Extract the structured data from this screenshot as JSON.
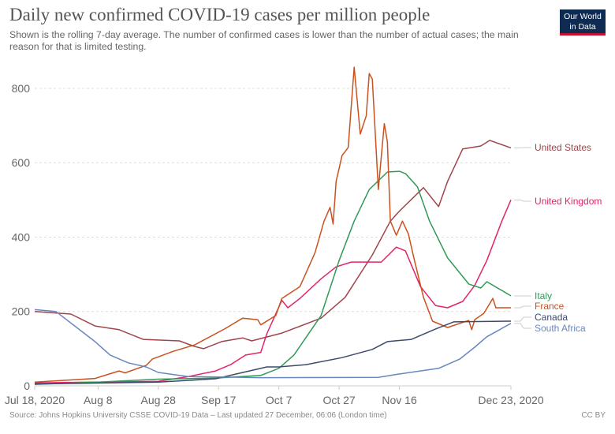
{
  "header": {
    "title": "Daily new confirmed COVID-19 cases per million people",
    "subtitle": "Shown is the rolling 7-day average. The number of confirmed cases is lower than the number of actual cases; the main reason for that is limited testing.",
    "logo_text": "Our World in Data"
  },
  "footer": {
    "source": "Source: Johns Hopkins University CSSE COVID-19 Data – Last updated 27 December, 06:06 (London time)",
    "license": "CC BY"
  },
  "chart_data": {
    "type": "line",
    "title": "Daily new confirmed COVID-19 cases per million people",
    "xlabel": "",
    "ylabel": "",
    "xlim": [
      "2020-07-18",
      "2020-12-23"
    ],
    "ylim": [
      0,
      870
    ],
    "grid": "horizontal dotted",
    "legend": "right (labels at line ends)",
    "x_ticks": [
      {
        "date": "2020-07-18",
        "label": "Jul 18, 2020"
      },
      {
        "date": "2020-08-08",
        "label": "Aug 8"
      },
      {
        "date": "2020-08-28",
        "label": "Aug 28"
      },
      {
        "date": "2020-09-17",
        "label": "Sep 17"
      },
      {
        "date": "2020-10-07",
        "label": "Oct 7"
      },
      {
        "date": "2020-10-27",
        "label": "Oct 27"
      },
      {
        "date": "2020-11-16",
        "label": "Nov 16"
      },
      {
        "date": "2020-12-23",
        "label": "Dec 23, 2020"
      }
    ],
    "y_ticks": [
      0,
      200,
      400,
      600,
      800
    ],
    "series": [
      {
        "name": "United States",
        "color": "#a0444b",
        "points": [
          [
            "2020-07-18",
            200
          ],
          [
            "2020-07-30",
            193
          ],
          [
            "2020-08-07",
            161
          ],
          [
            "2020-08-15",
            151
          ],
          [
            "2020-08-23",
            125
          ],
          [
            "2020-09-04",
            121
          ],
          [
            "2020-09-09",
            106
          ],
          [
            "2020-09-12",
            100
          ],
          [
            "2020-09-18",
            119
          ],
          [
            "2020-09-25",
            129
          ],
          [
            "2020-09-28",
            121
          ],
          [
            "2020-10-08",
            142
          ],
          [
            "2020-10-21",
            182
          ],
          [
            "2020-10-29",
            238
          ],
          [
            "2020-11-07",
            352
          ],
          [
            "2020-11-13",
            443
          ],
          [
            "2020-11-16",
            470
          ],
          [
            "2020-11-24",
            533
          ],
          [
            "2020-11-29",
            482
          ],
          [
            "2020-12-02",
            550
          ],
          [
            "2020-12-07",
            637
          ],
          [
            "2020-12-13",
            645
          ],
          [
            "2020-12-16",
            660
          ],
          [
            "2020-12-23",
            640
          ]
        ]
      },
      {
        "name": "United Kingdom",
        "color": "#e0246c",
        "points": [
          [
            "2020-07-18",
            8
          ],
          [
            "2020-08-28",
            12
          ],
          [
            "2020-09-07",
            25
          ],
          [
            "2020-09-16",
            40
          ],
          [
            "2020-09-21",
            57
          ],
          [
            "2020-09-26",
            83
          ],
          [
            "2020-10-01",
            90
          ],
          [
            "2020-10-03",
            140
          ],
          [
            "2020-10-08",
            230
          ],
          [
            "2020-10-10",
            210
          ],
          [
            "2020-10-14",
            235
          ],
          [
            "2020-10-21",
            288
          ],
          [
            "2020-10-26",
            320
          ],
          [
            "2020-10-31",
            333
          ],
          [
            "2020-11-10",
            333
          ],
          [
            "2020-11-15",
            373
          ],
          [
            "2020-11-18",
            363
          ],
          [
            "2020-11-23",
            267
          ],
          [
            "2020-11-28",
            216
          ],
          [
            "2020-12-02",
            210
          ],
          [
            "2020-12-07",
            227
          ],
          [
            "2020-12-11",
            270
          ],
          [
            "2020-12-15",
            337
          ],
          [
            "2020-12-20",
            443
          ],
          [
            "2020-12-23",
            500
          ]
        ]
      },
      {
        "name": "Italy",
        "color": "#2f9a57",
        "points": [
          [
            "2020-07-18",
            4
          ],
          [
            "2020-08-08",
            10
          ],
          [
            "2020-08-28",
            18
          ],
          [
            "2020-09-16",
            21
          ],
          [
            "2020-10-01",
            28
          ],
          [
            "2020-10-07",
            47
          ],
          [
            "2020-10-12",
            83
          ],
          [
            "2020-10-21",
            189
          ],
          [
            "2020-10-27",
            337
          ],
          [
            "2020-11-01",
            443
          ],
          [
            "2020-11-06",
            528
          ],
          [
            "2020-11-12",
            575
          ],
          [
            "2020-11-16",
            577
          ],
          [
            "2020-11-18",
            571
          ],
          [
            "2020-11-22",
            535
          ],
          [
            "2020-11-26",
            443
          ],
          [
            "2020-12-02",
            344
          ],
          [
            "2020-12-09",
            274
          ],
          [
            "2020-12-13",
            263
          ],
          [
            "2020-12-15",
            280
          ],
          [
            "2020-12-23",
            242
          ]
        ]
      },
      {
        "name": "France",
        "color": "#c9521f",
        "points": [
          [
            "2020-07-18",
            10
          ],
          [
            "2020-08-07",
            20
          ],
          [
            "2020-08-15",
            40
          ],
          [
            "2020-08-17",
            35
          ],
          [
            "2020-08-24",
            55
          ],
          [
            "2020-08-26",
            72
          ],
          [
            "2020-09-02",
            93
          ],
          [
            "2020-09-09",
            110
          ],
          [
            "2020-09-19",
            153
          ],
          [
            "2020-09-25",
            182
          ],
          [
            "2020-09-30",
            178
          ],
          [
            "2020-10-01",
            164
          ],
          [
            "2020-10-06",
            189
          ],
          [
            "2020-10-08",
            235
          ],
          [
            "2020-10-14",
            267
          ],
          [
            "2020-10-19",
            358
          ],
          [
            "2020-10-22",
            443
          ],
          [
            "2020-10-24",
            480
          ],
          [
            "2020-10-25",
            435
          ],
          [
            "2020-10-26",
            550
          ],
          [
            "2020-10-28",
            620
          ],
          [
            "2020-10-29",
            630
          ],
          [
            "2020-10-30",
            641
          ],
          [
            "2020-11-01",
            857
          ],
          [
            "2020-11-03",
            677
          ],
          [
            "2020-11-05",
            726
          ],
          [
            "2020-11-06",
            840
          ],
          [
            "2020-11-07",
            825
          ],
          [
            "2020-11-09",
            528
          ],
          [
            "2020-11-11",
            705
          ],
          [
            "2020-11-12",
            656
          ],
          [
            "2020-11-13",
            443
          ],
          [
            "2020-11-15",
            405
          ],
          [
            "2020-11-17",
            443
          ],
          [
            "2020-11-19",
            408
          ],
          [
            "2020-11-21",
            337
          ],
          [
            "2020-11-24",
            238
          ],
          [
            "2020-11-27",
            174
          ],
          [
            "2020-12-02",
            157
          ],
          [
            "2020-12-09",
            176
          ],
          [
            "2020-12-10",
            151
          ],
          [
            "2020-12-11",
            178
          ],
          [
            "2020-12-14",
            195
          ],
          [
            "2020-12-17",
            235
          ],
          [
            "2020-12-18",
            210
          ],
          [
            "2020-12-23",
            210
          ]
        ]
      },
      {
        "name": "Canada",
        "color": "#3d4a6b",
        "points": [
          [
            "2020-07-18",
            5
          ],
          [
            "2020-08-28",
            10
          ],
          [
            "2020-09-16",
            19
          ],
          [
            "2020-10-03",
            51
          ],
          [
            "2020-10-07",
            51
          ],
          [
            "2020-10-16",
            57
          ],
          [
            "2020-10-28",
            76
          ],
          [
            "2020-11-07",
            98
          ],
          [
            "2020-11-12",
            119
          ],
          [
            "2020-11-20",
            125
          ],
          [
            "2020-11-28",
            153
          ],
          [
            "2020-12-04",
            172
          ],
          [
            "2020-12-23",
            174
          ]
        ]
      },
      {
        "name": "South Africa",
        "color": "#6787c0",
        "points": [
          [
            "2020-07-18",
            205
          ],
          [
            "2020-07-25",
            200
          ],
          [
            "2020-08-07",
            119
          ],
          [
            "2020-08-12",
            83
          ],
          [
            "2020-08-18",
            62
          ],
          [
            "2020-08-24",
            51
          ],
          [
            "2020-08-28",
            36
          ],
          [
            "2020-09-07",
            25
          ],
          [
            "2020-10-01",
            22
          ],
          [
            "2020-11-09",
            23
          ],
          [
            "2020-11-16",
            32
          ],
          [
            "2020-11-29",
            47
          ],
          [
            "2020-12-06",
            72
          ],
          [
            "2020-12-11",
            104
          ],
          [
            "2020-12-15",
            132
          ],
          [
            "2020-12-23",
            168
          ]
        ]
      }
    ]
  }
}
